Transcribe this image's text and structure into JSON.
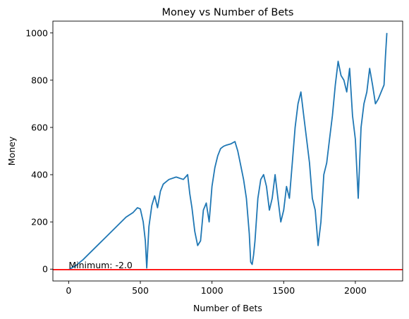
{
  "chart_data": {
    "type": "line",
    "title": "Money vs Number of Bets",
    "xlabel": "Number of Bets",
    "ylabel": "Money",
    "xlim": [
      -110,
      2330
    ],
    "ylim": [
      -50,
      1050
    ],
    "xticks": [
      0,
      500,
      1000,
      1500,
      2000
    ],
    "yticks": [
      0,
      200,
      400,
      600,
      800,
      1000
    ],
    "grid": false,
    "series": [
      {
        "color": "#1f77b4",
        "x": [
          0,
          50,
          100,
          150,
          200,
          250,
          300,
          350,
          400,
          450,
          480,
          500,
          520,
          535,
          545,
          560,
          580,
          600,
          620,
          640,
          660,
          680,
          700,
          750,
          800,
          830,
          845,
          860,
          880,
          900,
          920,
          940,
          960,
          980,
          1000,
          1020,
          1040,
          1060,
          1080,
          1100,
          1130,
          1160,
          1180,
          1200,
          1220,
          1240,
          1260,
          1270,
          1280,
          1290,
          1300,
          1320,
          1340,
          1360,
          1380,
          1400,
          1420,
          1440,
          1460,
          1480,
          1500,
          1520,
          1540,
          1560,
          1580,
          1600,
          1620,
          1640,
          1660,
          1680,
          1700,
          1720,
          1740,
          1760,
          1780,
          1800,
          1820,
          1840,
          1860,
          1880,
          1900,
          1920,
          1940,
          1960,
          1980,
          2000,
          2020,
          2040,
          2060,
          2080,
          2100,
          2120,
          2140,
          2160,
          2180,
          2200,
          2210,
          2220
        ],
        "y": [
          -2,
          15,
          40,
          70,
          100,
          130,
          160,
          190,
          220,
          240,
          260,
          255,
          200,
          120,
          5,
          180,
          270,
          310,
          260,
          330,
          360,
          370,
          380,
          390,
          380,
          400,
          320,
          260,
          160,
          100,
          120,
          250,
          280,
          200,
          350,
          430,
          480,
          510,
          520,
          525,
          530,
          540,
          500,
          440,
          380,
          300,
          150,
          30,
          20,
          60,
          120,
          300,
          380,
          400,
          350,
          250,
          300,
          400,
          300,
          200,
          250,
          350,
          300,
          450,
          600,
          700,
          750,
          650,
          550,
          450,
          300,
          250,
          100,
          200,
          400,
          450,
          550,
          650,
          780,
          880,
          820,
          800,
          750,
          850,
          650,
          550,
          300,
          600,
          700,
          750,
          850,
          780,
          700,
          720,
          750,
          780,
          900,
          1000
        ]
      },
      {
        "name": "",
        "color": "#ff0000",
        "type": "hline",
        "y": -2
      }
    ],
    "annotations": [
      {
        "text": "Minimum: -2.0",
        "x": 0,
        "y": -2
      }
    ]
  }
}
